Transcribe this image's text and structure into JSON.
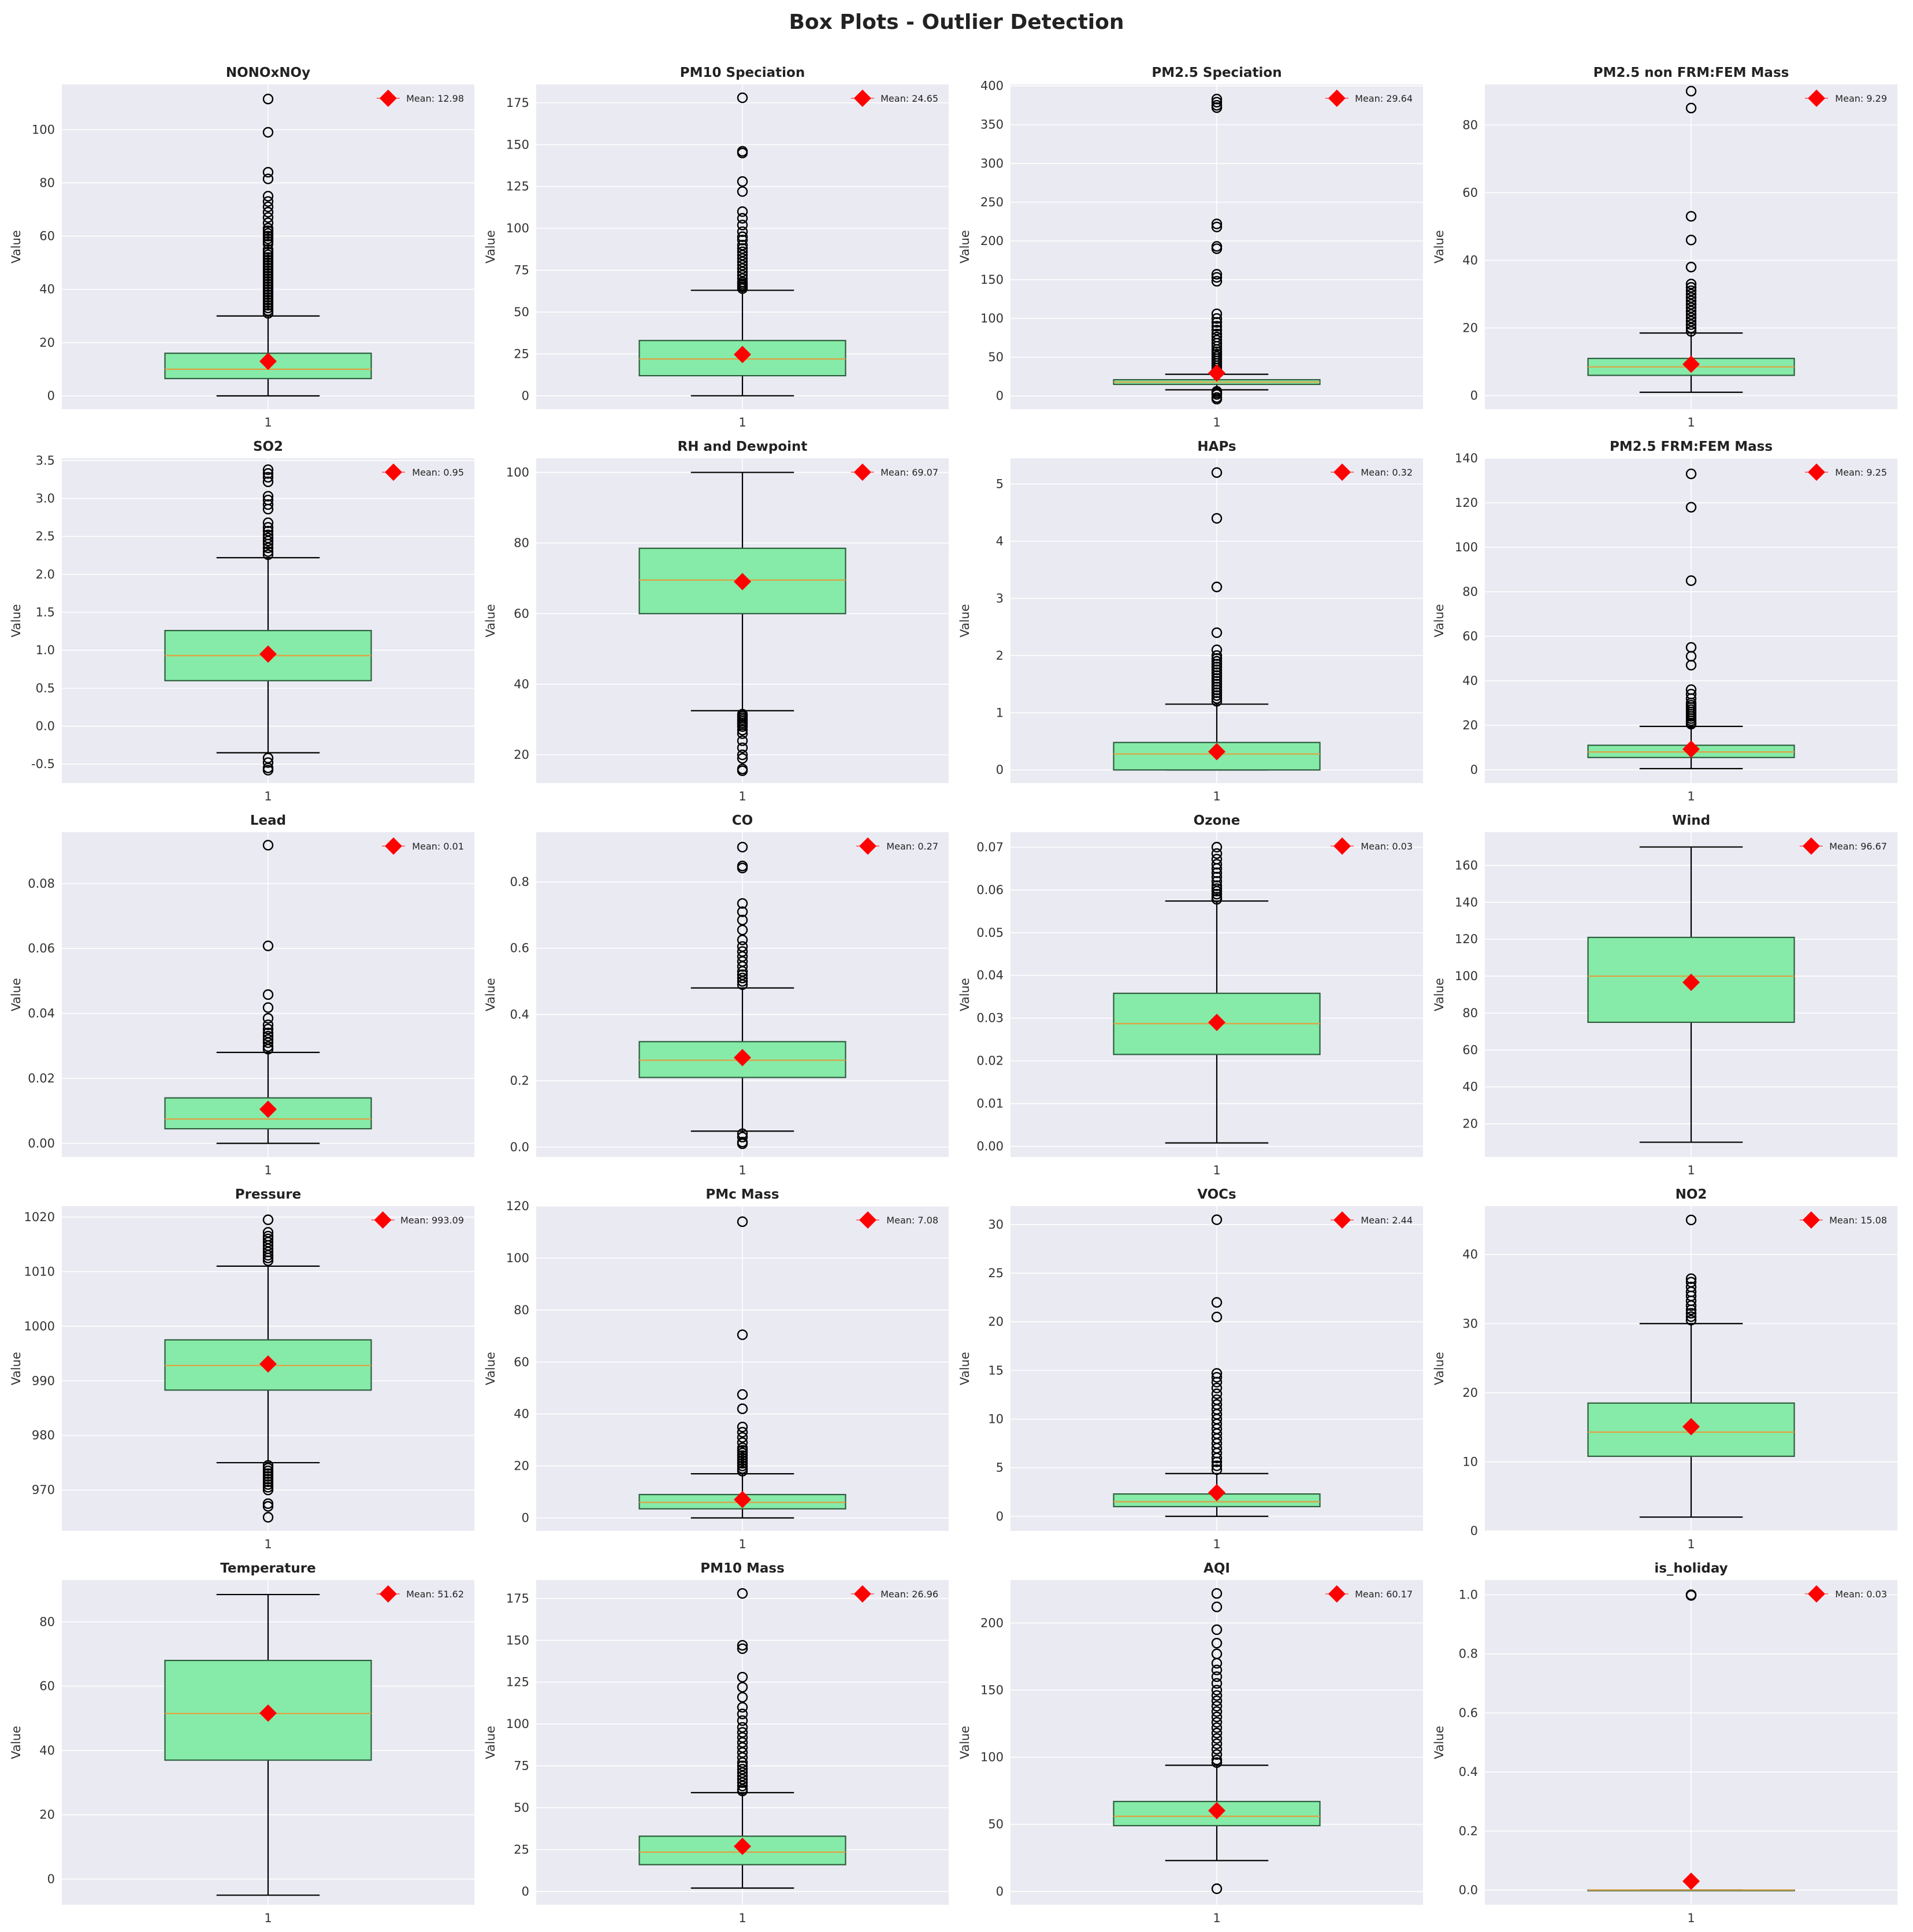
{
  "title": "Box Plots - Outlier Detection",
  "colors": {
    "background": "#eaeaf2",
    "grid": "#ffffff",
    "box_fill": "#86eba8",
    "box_edge": "#2e5e3e",
    "median": "#e0a040",
    "mean_marker": "#ff0000",
    "flier_edge": "#000000"
  },
  "chart_data": [
    {
      "type": "box",
      "title": "NONOxNOy",
      "ylabel": "Value",
      "xticks": [
        "1"
      ],
      "ylim": [
        -5,
        117
      ],
      "yticks": [
        0,
        20,
        40,
        60,
        80,
        100
      ],
      "legend": {
        "position": "top-right",
        "label": "Mean: 12.98"
      },
      "box": {
        "whislo": 0,
        "q1": 6.5,
        "med": 10,
        "q3": 16,
        "whishi": 30,
        "mean": 12.98,
        "fliers": [
          111.5,
          99,
          84,
          81.5,
          75,
          73,
          71,
          69,
          67,
          65,
          63,
          62,
          61,
          60,
          59,
          58,
          57,
          55,
          54,
          53,
          52,
          51,
          50,
          49,
          48,
          47,
          46,
          45,
          44,
          43,
          42,
          41,
          40,
          39,
          38,
          37,
          36,
          35,
          34,
          33,
          32,
          31
        ]
      }
    },
    {
      "type": "box",
      "title": "PM10 Speciation",
      "ylabel": "Value",
      "xticks": [
        "1"
      ],
      "ylim": [
        -8,
        186
      ],
      "yticks": [
        0,
        25,
        50,
        75,
        100,
        125,
        150,
        175
      ],
      "legend": {
        "position": "top-right",
        "label": "Mean: 24.65"
      },
      "box": {
        "whislo": 0,
        "q1": 12,
        "med": 22,
        "q3": 33,
        "whishi": 63,
        "mean": 24.65,
        "fliers": [
          178,
          146,
          145,
          128,
          122,
          110,
          106,
          102,
          98,
          95,
          93,
          90,
          88,
          86,
          84,
          82,
          80,
          78,
          76,
          74,
          72,
          70,
          68,
          67,
          66,
          65,
          64
        ]
      }
    },
    {
      "type": "box",
      "title": "PM2.5 Speciation",
      "ylabel": "Value",
      "xticks": [
        "1"
      ],
      "ylim": [
        -17,
        402
      ],
      "yticks": [
        0,
        50,
        100,
        150,
        200,
        250,
        300,
        350,
        400
      ],
      "legend": {
        "position": "top-right",
        "label": "Mean: 29.64"
      },
      "box": {
        "whislo": 8,
        "q1": 15,
        "med": 18,
        "q3": 21,
        "whishi": 28,
        "mean": 29.64,
        "fliers": [
          383,
          379,
          375,
          372,
          222,
          218,
          193,
          190,
          157,
          153,
          148,
          106,
          100,
          95,
          90,
          85,
          80,
          76,
          72,
          68,
          64,
          60,
          57,
          54,
          51,
          48,
          45,
          42,
          39,
          36,
          33,
          30,
          6,
          4,
          2,
          -2,
          -4
        ]
      }
    },
    {
      "type": "box",
      "title": "PM2.5 non FRM:FEM Mass",
      "ylabel": "Value",
      "xticks": [
        "1"
      ],
      "ylim": [
        -4,
        92
      ],
      "yticks": [
        0,
        20,
        40,
        60,
        80
      ],
      "legend": {
        "position": "top-right",
        "label": "Mean: 9.29"
      },
      "box": {
        "whislo": 1,
        "q1": 6,
        "med": 8.5,
        "q3": 11,
        "whishi": 18.5,
        "mean": 9.29,
        "fliers": [
          90,
          85,
          53,
          46,
          38,
          33,
          32,
          31,
          30,
          29,
          28,
          27,
          26,
          25,
          24,
          23,
          22,
          21,
          20,
          19
        ]
      }
    },
    {
      "type": "box",
      "title": "SO2",
      "ylabel": "Value",
      "xticks": [
        "1"
      ],
      "ylim": [
        -0.75,
        3.53
      ],
      "yticks": [
        -0.5,
        0.0,
        0.5,
        1.0,
        1.5,
        2.0,
        2.5,
        3.0,
        3.5
      ],
      "legend": {
        "position": "top-right",
        "label": "Mean: 0.95"
      },
      "box": {
        "whislo": -0.35,
        "q1": 0.6,
        "med": 0.93,
        "q3": 1.26,
        "whishi": 2.22,
        "mean": 0.95,
        "fliers": [
          3.38,
          3.33,
          3.28,
          3.22,
          3.03,
          2.98,
          2.92,
          2.86,
          2.68,
          2.62,
          2.57,
          2.52,
          2.48,
          2.44,
          2.4,
          2.35,
          2.3,
          2.26,
          -0.42,
          -0.48,
          -0.55,
          -0.58
        ]
      }
    },
    {
      "type": "box",
      "title": "RH and Dewpoint",
      "ylabel": "Value",
      "xticks": [
        "1"
      ],
      "ylim": [
        12,
        104
      ],
      "yticks": [
        20,
        40,
        60,
        80,
        100
      ],
      "legend": {
        "position": "top-right",
        "label": "Mean: 69.07"
      },
      "box": {
        "whislo": 32.5,
        "q1": 60,
        "med": 69.5,
        "q3": 78.5,
        "whishi": 100,
        "mean": 69.07,
        "fliers": [
          31.5,
          31,
          30.5,
          30,
          29.5,
          29,
          28.5,
          28,
          27,
          26,
          24,
          22,
          20,
          19,
          16,
          15.5
        ]
      }
    },
    {
      "type": "box",
      "title": "HAPs",
      "ylabel": "Value",
      "xticks": [
        "1"
      ],
      "ylim": [
        -0.23,
        5.45
      ],
      "yticks": [
        0,
        1,
        2,
        3,
        4,
        5
      ],
      "legend": {
        "position": "top-right",
        "label": "Mean: 0.32"
      },
      "box": {
        "whislo": 0,
        "q1": 0,
        "med": 0.28,
        "q3": 0.48,
        "whishi": 1.15,
        "mean": 0.32,
        "fliers": [
          5.2,
          4.4,
          3.2,
          2.4,
          2.1,
          2.0,
          1.95,
          1.9,
          1.85,
          1.8,
          1.75,
          1.7,
          1.65,
          1.6,
          1.55,
          1.5,
          1.45,
          1.4,
          1.35,
          1.3,
          1.25,
          1.2
        ]
      }
    },
    {
      "type": "box",
      "title": "PM2.5 FRM:FEM Mass",
      "ylabel": "Value",
      "xticks": [
        "1"
      ],
      "ylim": [
        -6,
        140
      ],
      "yticks": [
        0,
        20,
        40,
        60,
        80,
        100,
        120,
        140
      ],
      "legend": {
        "position": "top-right",
        "label": "Mean: 9.25"
      },
      "box": {
        "whislo": 0.5,
        "q1": 5.5,
        "med": 8,
        "q3": 11,
        "whishi": 19.5,
        "mean": 9.25,
        "fliers": [
          133,
          118,
          85,
          55,
          51,
          47,
          36,
          34,
          32,
          30,
          29,
          28,
          27,
          26,
          25,
          24,
          23,
          22,
          21,
          20.5
        ]
      }
    },
    {
      "type": "box",
      "title": "Lead",
      "ylabel": "Value",
      "xticks": [
        "1"
      ],
      "ylim": [
        -0.0042,
        0.0958
      ],
      "yticks": [
        0.0,
        0.02,
        0.04,
        0.06,
        0.08
      ],
      "legend": {
        "position": "top-right",
        "label": "Mean: 0.01"
      },
      "box": {
        "whislo": 0,
        "q1": 0.0045,
        "med": 0.0075,
        "q3": 0.014,
        "whishi": 0.028,
        "mean": 0.0105,
        "fliers": [
          0.0918,
          0.0608,
          0.0458,
          0.0418,
          0.0385,
          0.0365,
          0.0352,
          0.034,
          0.033,
          0.032,
          0.031,
          0.0298,
          0.029
        ]
      }
    },
    {
      "type": "box",
      "title": "CO",
      "ylabel": "Value",
      "xticks": [
        "1"
      ],
      "ylim": [
        -0.03,
        0.95
      ],
      "yticks": [
        0.0,
        0.2,
        0.4,
        0.6,
        0.8
      ],
      "legend": {
        "position": "top-right",
        "label": "Mean: 0.27"
      },
      "box": {
        "whislo": 0.048,
        "q1": 0.21,
        "med": 0.262,
        "q3": 0.318,
        "whishi": 0.48,
        "mean": 0.27,
        "fliers": [
          0.905,
          0.848,
          0.842,
          0.735,
          0.71,
          0.685,
          0.655,
          0.625,
          0.605,
          0.59,
          0.575,
          0.56,
          0.545,
          0.53,
          0.52,
          0.51,
          0.5,
          0.49,
          0.04,
          0.03,
          0.015,
          0.01
        ]
      }
    },
    {
      "type": "box",
      "title": "Ozone",
      "ylabel": "Value",
      "xticks": [
        "1"
      ],
      "ylim": [
        -0.0025,
        0.0735
      ],
      "yticks": [
        0.0,
        0.01,
        0.02,
        0.03,
        0.04,
        0.05,
        0.06,
        0.07
      ],
      "legend": {
        "position": "top-right",
        "label": "Mean: 0.03"
      },
      "box": {
        "whislo": 0.0008,
        "q1": 0.0215,
        "med": 0.0287,
        "q3": 0.0358,
        "whishi": 0.0574,
        "mean": 0.029,
        "fliers": [
          0.07,
          0.0685,
          0.0672,
          0.066,
          0.065,
          0.064,
          0.063,
          0.062,
          0.061,
          0.0603,
          0.0597,
          0.059,
          0.0583,
          0.0578
        ]
      }
    },
    {
      "type": "box",
      "title": "Wind",
      "ylabel": "Value",
      "xticks": [
        "1"
      ],
      "ylim": [
        2,
        178
      ],
      "yticks": [
        20,
        40,
        60,
        80,
        100,
        120,
        140,
        160
      ],
      "legend": {
        "position": "top-right",
        "label": "Mean: 96.67"
      },
      "box": {
        "whislo": 10,
        "q1": 75,
        "med": 100,
        "q3": 121,
        "whishi": 170,
        "mean": 96.67,
        "fliers": []
      }
    },
    {
      "type": "box",
      "title": "Pressure",
      "ylabel": "Value",
      "xticks": [
        "1"
      ],
      "ylim": [
        962.5,
        1022
      ],
      "yticks": [
        970,
        980,
        990,
        1000,
        1010,
        1020
      ],
      "legend": {
        "position": "top-right",
        "label": "Mean: 993.09"
      },
      "box": {
        "whislo": 975,
        "q1": 988.3,
        "med": 992.8,
        "q3": 997.5,
        "whishi": 1011,
        "mean": 993.09,
        "fliers": [
          1019.5,
          1017.2,
          1016.5,
          1016,
          1015.4,
          1014.8,
          1014.2,
          1013.6,
          1013,
          1012.5,
          1012,
          974.5,
          974,
          973.5,
          973,
          972.5,
          972,
          971.5,
          971,
          970.5,
          970,
          967.5,
          967,
          965
        ]
      }
    },
    {
      "type": "box",
      "title": "PMc Mass",
      "ylabel": "Value",
      "xticks": [
        "1"
      ],
      "ylim": [
        -5,
        120
      ],
      "yticks": [
        0,
        20,
        40,
        60,
        80,
        100,
        120
      ],
      "legend": {
        "position": "top-right",
        "label": "Mean: 7.08"
      },
      "box": {
        "whislo": 0,
        "q1": 3.5,
        "med": 6,
        "q3": 9,
        "whishi": 17,
        "mean": 7.08,
        "fliers": [
          114,
          70.5,
          47.5,
          42,
          35,
          33,
          31,
          29,
          27,
          26,
          25,
          24,
          23,
          22,
          21,
          20,
          19,
          18
        ]
      }
    },
    {
      "type": "box",
      "title": "VOCs",
      "ylabel": "Value",
      "xticks": [
        "1"
      ],
      "ylim": [
        -1.5,
        31.9
      ],
      "yticks": [
        0,
        5,
        10,
        15,
        20,
        25,
        30
      ],
      "legend": {
        "position": "top-right",
        "label": "Mean: 2.44"
      },
      "box": {
        "whislo": 0,
        "q1": 1.0,
        "med": 1.5,
        "q3": 2.3,
        "whishi": 4.4,
        "mean": 2.44,
        "fliers": [
          30.5,
          22,
          20.5,
          14.7,
          14.3,
          13.8,
          13.2,
          12.6,
          12,
          11.5,
          11,
          10.5,
          10,
          9.5,
          9,
          8.5,
          8,
          7.5,
          7,
          6.5,
          6,
          5.6,
          5.2,
          4.8
        ]
      }
    },
    {
      "type": "box",
      "title": "NO2",
      "ylabel": "Value",
      "xticks": [
        "1"
      ],
      "ylim": [
        0,
        47
      ],
      "yticks": [
        0,
        10,
        20,
        30,
        40
      ],
      "legend": {
        "position": "top-right",
        "label": "Mean: 15.08"
      },
      "box": {
        "whislo": 2,
        "q1": 10.8,
        "med": 14.3,
        "q3": 18.5,
        "whishi": 30,
        "mean": 15.08,
        "fliers": [
          45,
          36.5,
          36,
          35.3,
          34.6,
          34,
          33.3,
          32.6,
          32,
          31.5,
          31,
          30.5
        ]
      }
    },
    {
      "type": "box",
      "title": "Temperature",
      "ylabel": "Value",
      "xticks": [
        "1"
      ],
      "ylim": [
        -8,
        93
      ],
      "yticks": [
        0,
        20,
        40,
        60,
        80
      ],
      "legend": {
        "position": "top-right",
        "label": "Mean: 51.62"
      },
      "box": {
        "whislo": -5,
        "q1": 37,
        "med": 51.5,
        "q3": 68,
        "whishi": 88.5,
        "mean": 51.62,
        "fliers": []
      }
    },
    {
      "type": "box",
      "title": "PM10 Mass",
      "ylabel": "Value",
      "xticks": [
        "1"
      ],
      "ylim": [
        -8,
        186
      ],
      "yticks": [
        0,
        25,
        50,
        75,
        100,
        125,
        150,
        175
      ],
      "legend": {
        "position": "top-right",
        "label": "Mean: 26.96"
      },
      "box": {
        "whislo": 2,
        "q1": 16,
        "med": 23.5,
        "q3": 33,
        "whishi": 59,
        "mean": 26.96,
        "fliers": [
          178,
          147,
          145,
          128,
          122,
          116,
          110,
          106,
          102,
          98,
          95,
          92,
          89,
          86,
          83,
          80,
          77,
          75,
          73,
          71,
          69,
          67,
          65,
          63,
          61,
          60
        ]
      }
    },
    {
      "type": "box",
      "title": "AQI",
      "ylabel": "Value",
      "xticks": [
        "1"
      ],
      "ylim": [
        -10,
        232
      ],
      "yticks": [
        0,
        50,
        100,
        150,
        200
      ],
      "legend": {
        "position": "top-right",
        "label": "Mean: 60.17"
      },
      "box": {
        "whislo": 23,
        "q1": 49,
        "med": 56,
        "q3": 67,
        "whishi": 94,
        "mean": 60.17,
        "fliers": [
          222,
          212,
          195,
          185,
          177,
          170,
          165,
          160,
          155,
          150,
          146,
          142,
          138,
          134,
          130,
          126,
          122,
          118,
          114,
          110,
          106,
          102,
          98,
          96,
          2
        ]
      }
    },
    {
      "type": "box",
      "title": "is_holiday",
      "ylabel": "Value",
      "xticks": [
        "1"
      ],
      "ylim": [
        -0.05,
        1.05
      ],
      "yticks": [
        0.0,
        0.2,
        0.4,
        0.6,
        0.8,
        1.0
      ],
      "legend": {
        "position": "top-right",
        "label": "Mean: 0.03"
      },
      "box": {
        "whislo": 0,
        "q1": 0,
        "med": 0,
        "q3": 0,
        "whishi": 0,
        "mean": 0.03,
        "fliers": [
          1.0,
          1.0,
          0.998
        ]
      }
    }
  ]
}
